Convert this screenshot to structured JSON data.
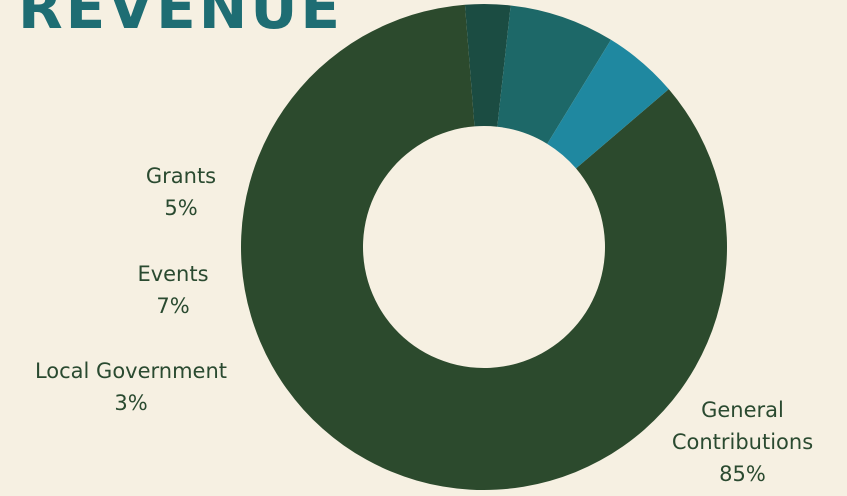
{
  "title": "REVENUE",
  "chart_data": {
    "type": "pie",
    "donut": true,
    "categories": [
      "General Contributions",
      "Grants",
      "Events",
      "Local Government"
    ],
    "values": [
      85,
      5,
      7,
      3
    ],
    "value_labels": [
      "85%",
      "5%",
      "7%",
      "3%"
    ],
    "colors": [
      "#2c4a2d",
      "#1f88a0",
      "#1d6868",
      "#1b4c42"
    ],
    "labels_shown": [
      {
        "name": "Grants",
        "value": "5%"
      },
      {
        "name": "Events",
        "value": "7%"
      },
      {
        "name": "Local Government",
        "value": "3%"
      },
      {
        "name": "General",
        "name2": "Contributions",
        "value": "85%"
      }
    ]
  }
}
